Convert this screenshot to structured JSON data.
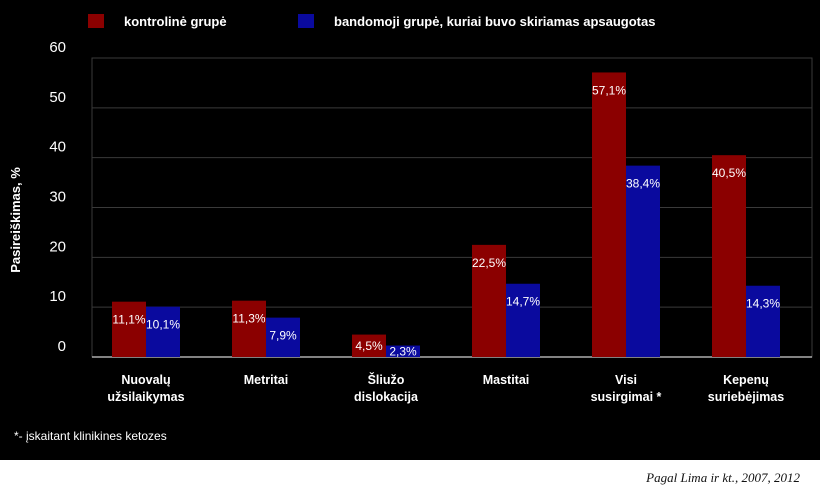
{
  "chart_data": {
    "type": "bar",
    "categories": [
      [
        "Nuovalų",
        "užsilaikymas"
      ],
      [
        "Metritai"
      ],
      [
        "Šliužo",
        "dislokacija"
      ],
      [
        "Mastitai"
      ],
      [
        "Visi",
        "susirgimai *"
      ],
      [
        "Kepenų",
        "suriebėjimas"
      ]
    ],
    "series": [
      {
        "name": "kontrolinė grupė",
        "color": "#8B0000",
        "values": [
          11.1,
          11.3,
          4.5,
          22.5,
          57.1,
          40.5
        ],
        "labels": [
          "11,1%",
          "11,3%",
          "4,5%",
          "22,5%",
          "57,1%",
          "40,5%"
        ]
      },
      {
        "name": "bandomoji grupė, kuriai buvo skiriamas apsaugotas",
        "color": "#0A0A9E",
        "values": [
          10.1,
          7.9,
          2.3,
          14.7,
          38.4,
          14.3
        ],
        "labels": [
          "10,1%",
          "7,9%",
          "2,3%",
          "14,7%",
          "38,4%",
          "14,3%"
        ]
      }
    ],
    "ylabel": "Pasireiškimas, %",
    "yticks": [
      0,
      10,
      20,
      30,
      40,
      50,
      60
    ],
    "ylim": [
      0,
      60
    ],
    "grid": true,
    "legend_position": "top",
    "footnote": "*- įskaitant klinikines ketozes"
  },
  "source_note": "Pagal Lima ir kt., 2007, 2012"
}
